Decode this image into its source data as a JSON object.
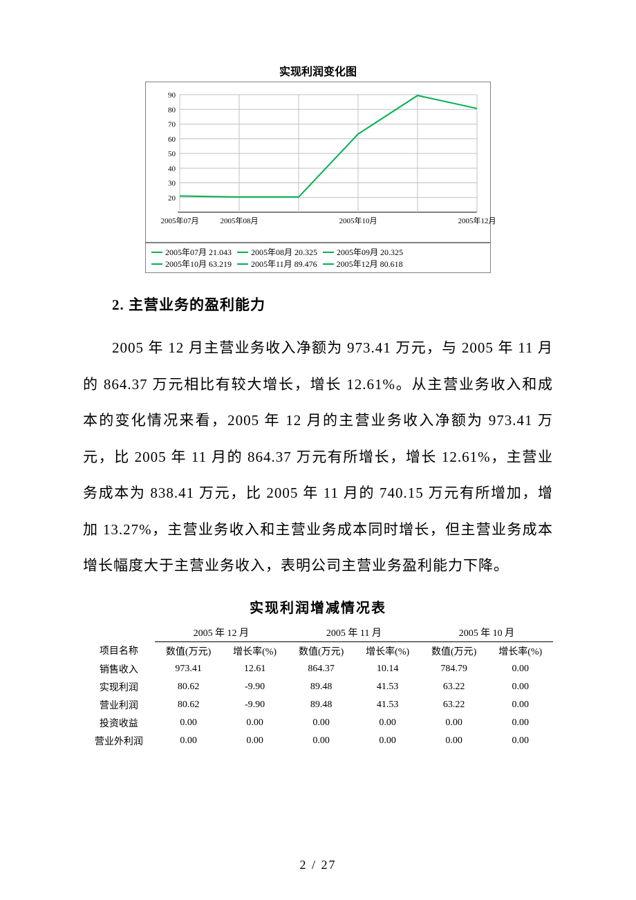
{
  "chart": {
    "type": "line",
    "title": "实现利润变化图",
    "title_fontsize": 16,
    "background_color": "#ffffff",
    "border_color": "#808080",
    "grid_color": "#c0c0c0",
    "axis_color": "#000000",
    "line_color": "#00b050",
    "line_width": 2,
    "ylim": [
      10,
      90
    ],
    "ytick_step": 10,
    "yticks": [
      20,
      30,
      40,
      50,
      60,
      70,
      80,
      90
    ],
    "x_labels_shown": [
      "2005年07月",
      "2005年08月",
      "2005年10月",
      "2005年12月"
    ],
    "series": {
      "labels": [
        "2005年07月",
        "2005年08月",
        "2005年09月",
        "2005年10月",
        "2005年11月",
        "2005年12月"
      ],
      "values": [
        21.043,
        20.325,
        20.325,
        63.219,
        89.476,
        80.618
      ]
    },
    "legend": [
      {
        "label": "2005年07月 21.043",
        "color": "#00b050"
      },
      {
        "label": "2005年08月 20.325",
        "color": "#00b050"
      },
      {
        "label": "2005年09月 20.325",
        "color": "#00b050"
      },
      {
        "label": "2005年10月 63.219",
        "color": "#00b050"
      },
      {
        "label": "2005年11月 89.476",
        "color": "#00b050"
      },
      {
        "label": "2005年12月 80.618",
        "color": "#00b050"
      }
    ]
  },
  "section": {
    "heading": "2. 主营业务的盈利能力",
    "paragraph": "2005 年 12 月主营业务收入净额为 973.41 万元，与 2005 年 11 月的 864.37 万元相比有较大增长，增长 12.61%。从主营业务收入和成本的变化情况来看，2005 年 12 月的主营业务收入净额为 973.41 万元，比 2005 年 11 月的 864.37 万元有所增长，增长 12.61%，主营业务成本为 838.41 万元，比 2005 年 11 月的 740.15 万元有所增加，增加 13.27%，主营业务收入和主营业务成本同时增长，但主营业务成本增长幅度大于主营业务收入，表明公司主营业务盈利能力下降。"
  },
  "table": {
    "title": "实现利润增减情况表",
    "row_label_header": "项目名称",
    "value_header": "数值(万元)",
    "growth_header": "增长率(%)",
    "periods": [
      "2005 年 12 月",
      "2005 年 11 月",
      "2005 年 10 月"
    ],
    "rows": [
      {
        "label": "销售收入",
        "cells": [
          "973.41",
          "12.61",
          "864.37",
          "10.14",
          "784.79",
          "0.00"
        ]
      },
      {
        "label": "实现利润",
        "cells": [
          "80.62",
          "-9.90",
          "89.48",
          "41.53",
          "63.22",
          "0.00"
        ]
      },
      {
        "label": "营业利润",
        "cells": [
          "80.62",
          "-9.90",
          "89.48",
          "41.53",
          "63.22",
          "0.00"
        ]
      },
      {
        "label": "投资收益",
        "cells": [
          "0.00",
          "0.00",
          "0.00",
          "0.00",
          "0.00",
          "0.00"
        ]
      },
      {
        "label": "营业外利润",
        "cells": [
          "0.00",
          "0.00",
          "0.00",
          "0.00",
          "0.00",
          "0.00"
        ]
      }
    ]
  },
  "page_number": "2 / 27"
}
